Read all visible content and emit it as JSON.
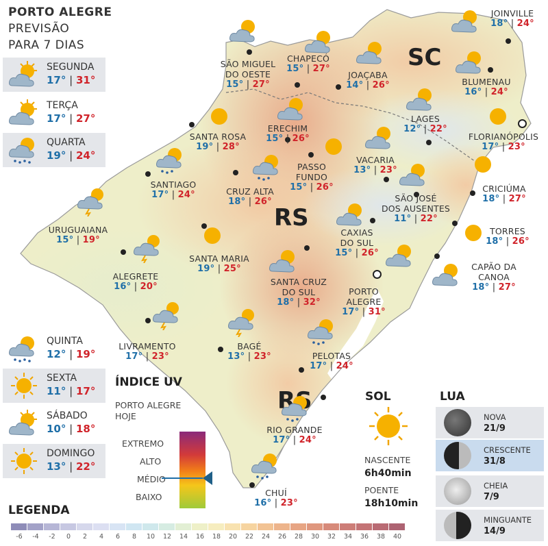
{
  "header": {
    "line1": "PORTO ALEGRE",
    "line2": "PREVISÃO",
    "line3": "PARA 7 DIAS"
  },
  "forecast": [
    {
      "day": "SEGUNDA",
      "min": "17°",
      "max": "31°",
      "icon": "partly-cloudy-icon"
    },
    {
      "day": "TERÇA",
      "min": "17°",
      "max": "27°",
      "icon": "partly-cloudy-icon"
    },
    {
      "day": "QUARTA",
      "min": "19°",
      "max": "24°",
      "icon": "sun-cloud-rain-icon"
    },
    {
      "day": "QUINTA",
      "min": "12°",
      "max": "19°",
      "icon": "sun-cloud-rain-icon"
    },
    {
      "day": "SEXTA",
      "min": "11°",
      "max": "17°",
      "icon": "sun-icon"
    },
    {
      "day": "SÁBADO",
      "min": "10°",
      "max": "18°",
      "icon": "partly-cloudy-icon"
    },
    {
      "day": "DOMINGO",
      "min": "13°",
      "max": "22°",
      "icon": "sun-icon"
    }
  ],
  "states": {
    "rs": "RS",
    "sc": "SC",
    "rs_south": "RS"
  },
  "cities": [
    {
      "id": "sao-miguel",
      "l1": "SÃO MIGUEL",
      "l2": "DO OESTE",
      "min": "15°",
      "max": "27°"
    },
    {
      "id": "chapeco",
      "l1": "CHAPECÓ",
      "l2": "",
      "min": "15°",
      "max": "27°"
    },
    {
      "id": "joacaba",
      "l1": "JOAÇABA",
      "l2": "",
      "min": "14°",
      "max": "26°"
    },
    {
      "id": "joinville",
      "l1": "JOINVILLE",
      "l2": "",
      "min": "18°",
      "max": "24°"
    },
    {
      "id": "blumenau",
      "l1": "BLUMENAU",
      "l2": "",
      "min": "16°",
      "max": "24°"
    },
    {
      "id": "lages",
      "l1": "LAGES",
      "l2": "",
      "min": "12°",
      "max": "22°"
    },
    {
      "id": "florianopolis",
      "l1": "FLORIANÓPOLIS",
      "l2": "",
      "min": "17°",
      "max": "23°"
    },
    {
      "id": "santa-rosa",
      "l1": "SANTA ROSA",
      "l2": "",
      "min": "19°",
      "max": "28°"
    },
    {
      "id": "erechim",
      "l1": "ERECHIM",
      "l2": "",
      "min": "15°",
      "max": "26°"
    },
    {
      "id": "vacaria",
      "l1": "VACARIA",
      "l2": "",
      "min": "13°",
      "max": "23°"
    },
    {
      "id": "santiago",
      "l1": "SANTIAGO",
      "l2": "",
      "min": "17°",
      "max": "24°"
    },
    {
      "id": "cruz-alta",
      "l1": "CRUZ ALTA",
      "l2": "",
      "min": "18°",
      "max": "26°"
    },
    {
      "id": "passo-fundo",
      "l1": "PASSO",
      "l2": "FUNDO",
      "min": "15°",
      "max": "26°"
    },
    {
      "id": "sao-jose",
      "l1": "SÃO JOSÉ",
      "l2": "DOS AUSENTES",
      "min": "11°",
      "max": "22°"
    },
    {
      "id": "criciuma",
      "l1": "CRICIÚMA",
      "l2": "",
      "min": "18°",
      "max": "27°"
    },
    {
      "id": "uruguaiana",
      "l1": "URUGUAIANA",
      "l2": "",
      "min": "15°",
      "max": "19°"
    },
    {
      "id": "caxias",
      "l1": "CAXIAS",
      "l2": "DO SUL",
      "min": "15°",
      "max": "26°"
    },
    {
      "id": "torres",
      "l1": "TORRES",
      "l2": "",
      "min": "18°",
      "max": "26°"
    },
    {
      "id": "santa-maria",
      "l1": "SANTA MARIA",
      "l2": "",
      "min": "19°",
      "max": "25°"
    },
    {
      "id": "alegrete",
      "l1": "ALEGRETE",
      "l2": "",
      "min": "16°",
      "max": "20°"
    },
    {
      "id": "santa-cruz",
      "l1": "SANTA CRUZ",
      "l2": "DO SUL",
      "min": "18°",
      "max": "32°"
    },
    {
      "id": "porto-alegre",
      "l1": "PORTO",
      "l2": "ALEGRE",
      "min": "17°",
      "max": "31°"
    },
    {
      "id": "capao",
      "l1": "CAPÃO DA",
      "l2": "CANOA",
      "min": "18°",
      "max": "27°"
    },
    {
      "id": "livramento",
      "l1": "LIVRAMENTO",
      "l2": "",
      "min": "17°",
      "max": "23°"
    },
    {
      "id": "bage",
      "l1": "BAGÉ",
      "l2": "",
      "min": "13°",
      "max": "23°"
    },
    {
      "id": "pelotas",
      "l1": "PELOTAS",
      "l2": "",
      "min": "17°",
      "max": "24°"
    },
    {
      "id": "rio-grande",
      "l1": "RIO GRANDE",
      "l2": "",
      "min": "17°",
      "max": "24°"
    },
    {
      "id": "chui",
      "l1": "CHUÍ",
      "l2": "",
      "min": "16°",
      "max": "23°"
    }
  ],
  "uv": {
    "title": "ÍNDICE UV",
    "sub1": "PORTO ALEGRE",
    "sub2": "HOJE",
    "levels": [
      "EXTREMO",
      "ALTO",
      "MÉDIO",
      "BAIXO"
    ],
    "current_level": "MÉDIO"
  },
  "sol": {
    "title": "SOL",
    "sunrise_label": "NASCENTE",
    "sunrise": "6h40min",
    "sunset_label": "POENTE",
    "sunset": "18h10min"
  },
  "lua": {
    "title": "LUA",
    "phases": [
      {
        "name": "NOVA",
        "date": "21/9"
      },
      {
        "name": "CRESCENTE",
        "date": "31/8"
      },
      {
        "name": "CHEIA",
        "date": "7/9"
      },
      {
        "name": "MINGUANTE",
        "date": "14/9"
      }
    ]
  },
  "legend": {
    "title": "LEGENDA",
    "scale": [
      "-6",
      "-4",
      "-2",
      "0",
      "2",
      "4",
      "6",
      "8",
      "10",
      "12",
      "14",
      "16",
      "18",
      "20",
      "22",
      "24",
      "26",
      "28",
      "30",
      "32",
      "34",
      "36",
      "38",
      "40"
    ],
    "colors": [
      "#8e8cb8",
      "#a3a2c8",
      "#b6b6d6",
      "#c7c8e2",
      "#d6d8ec",
      "#dcdff2",
      "#d8e4f4",
      "#d0e6f2",
      "#cfe8ec",
      "#d6ece2",
      "#e2efd4",
      "#eef0c8",
      "#f6edbf",
      "#f8e2b0",
      "#f6d4a0",
      "#f2c394",
      "#edb48b",
      "#e7a584",
      "#df977e",
      "#d78a7a",
      "#cd7e78",
      "#c47476",
      "#b96b74",
      "#ad6372"
    ]
  }
}
